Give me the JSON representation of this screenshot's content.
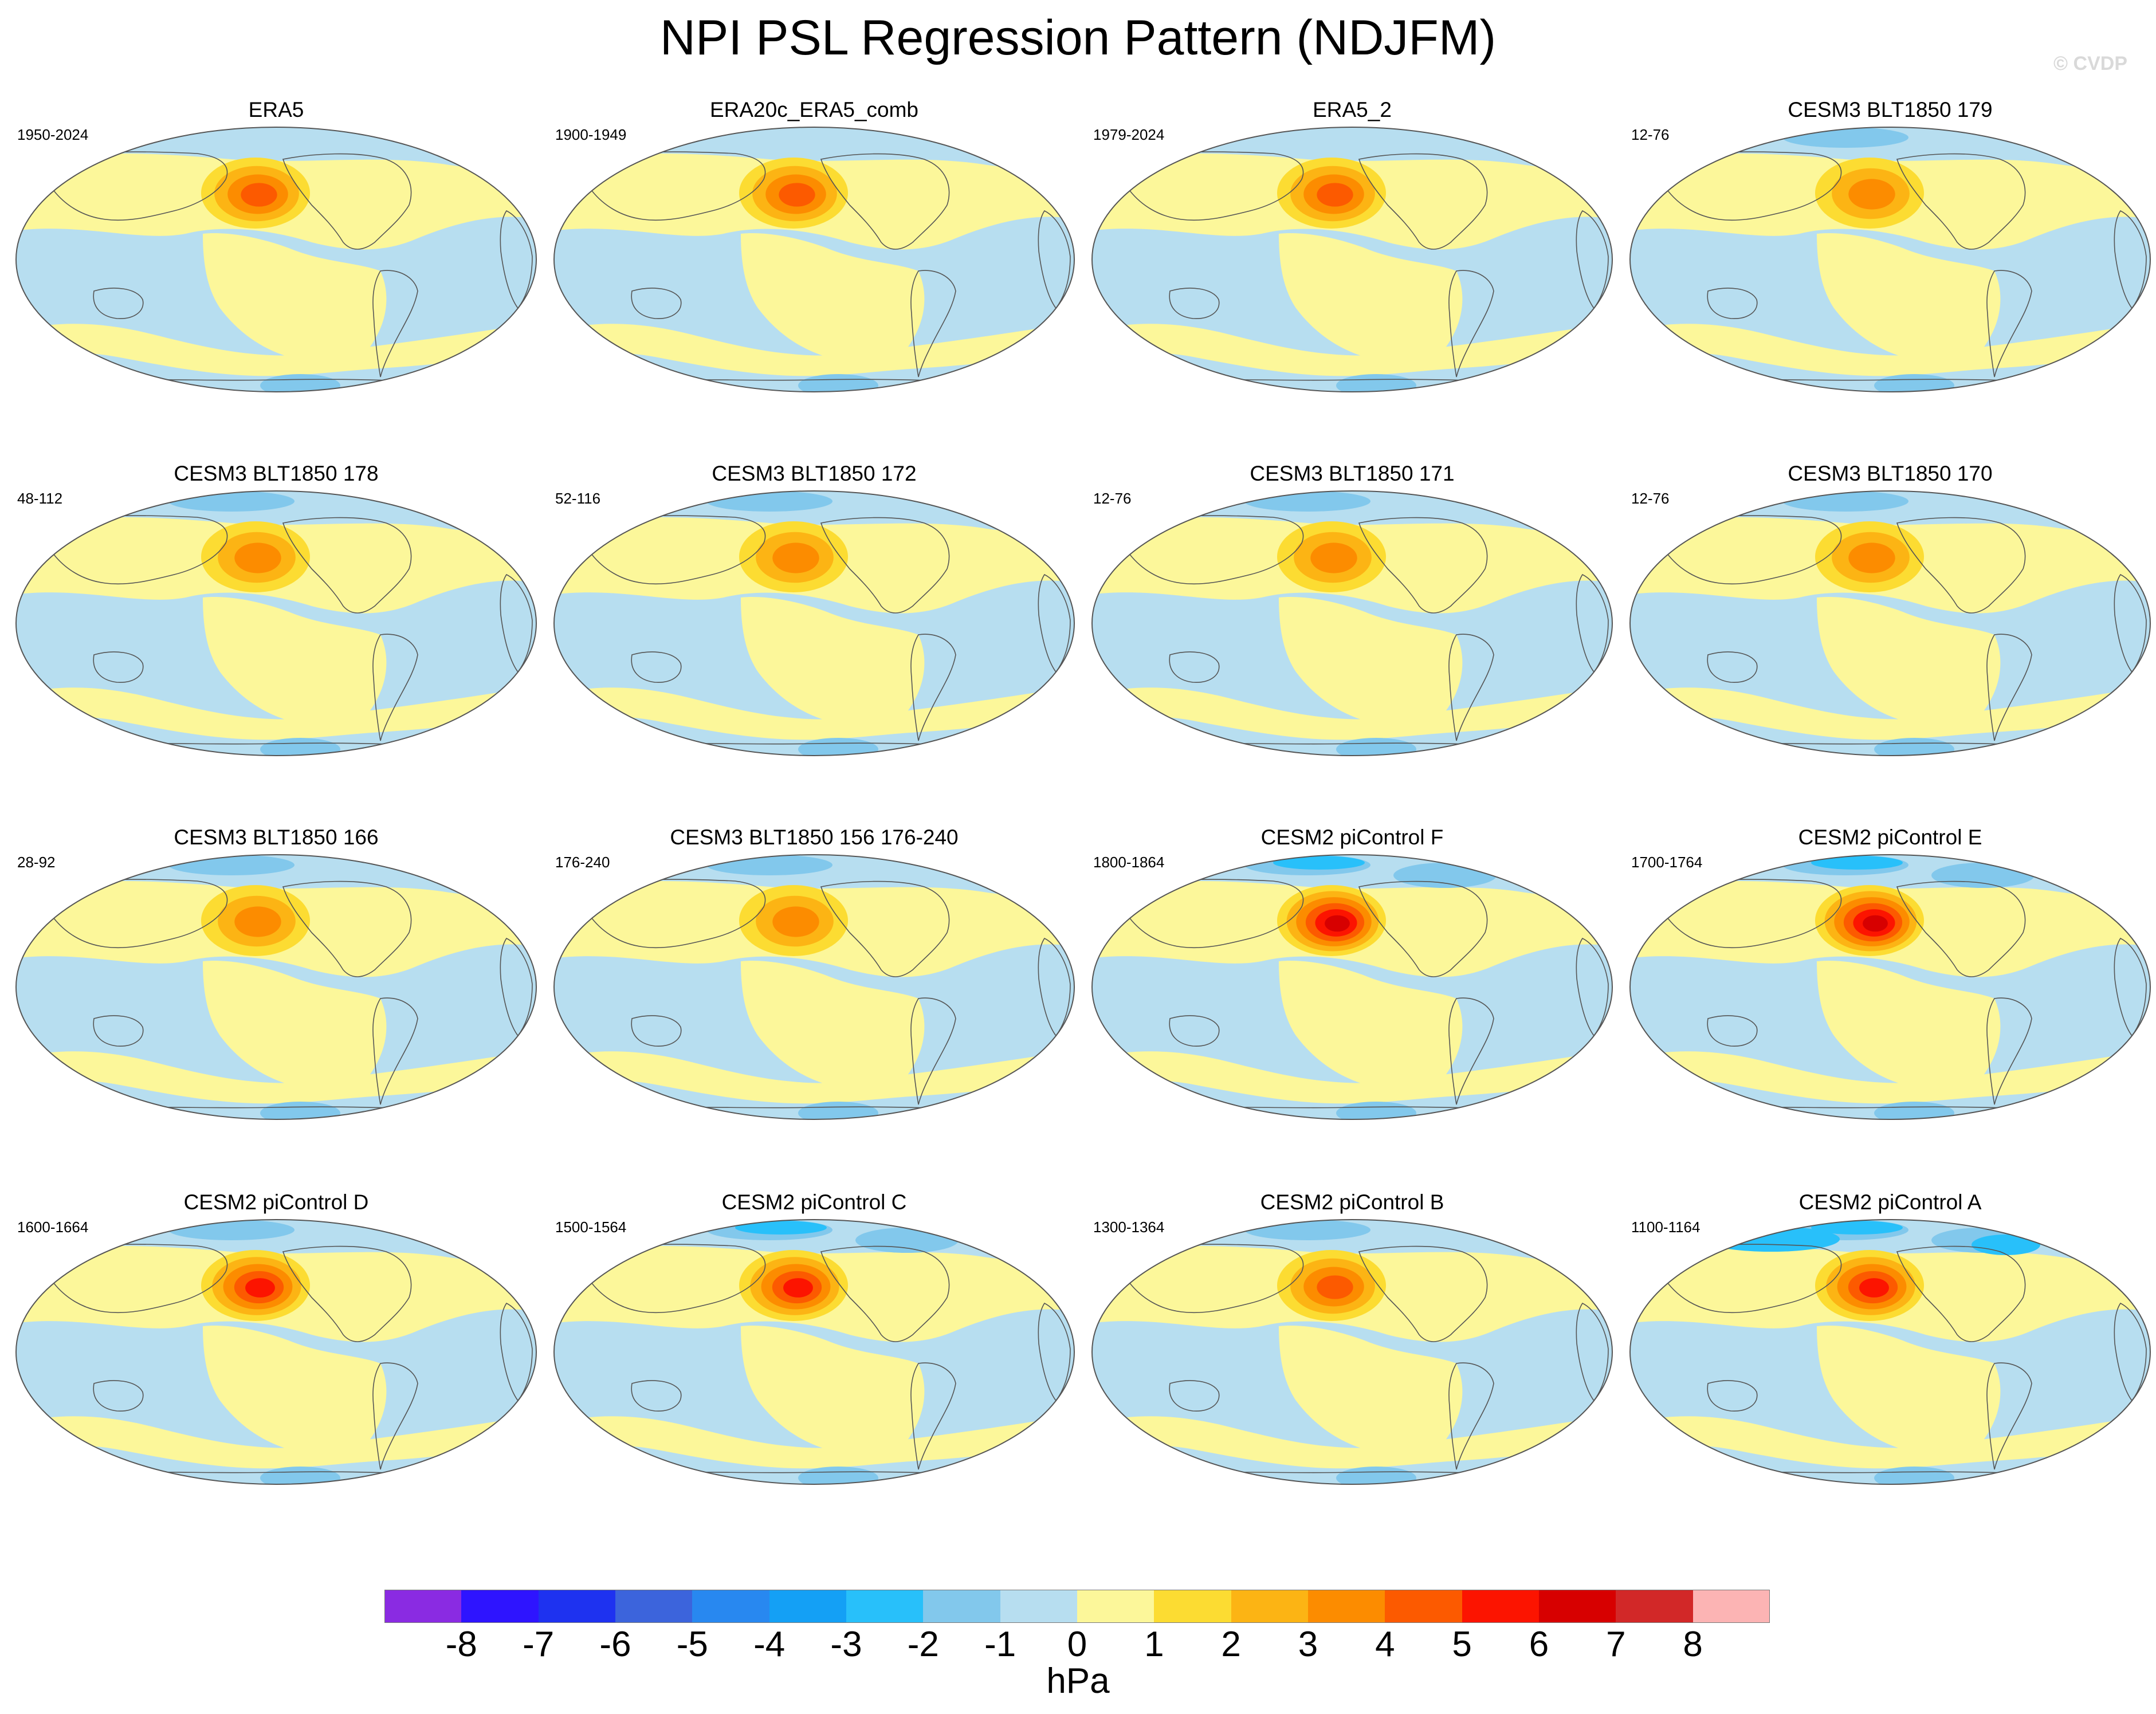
{
  "title": "NPI PSL Regression Pattern (NDJFM)",
  "credit": "© CVDP",
  "colors": {
    "ocean_pos": "#fcf79a",
    "ocean_neg": "#b7def0",
    "coast": "#555555"
  },
  "panels": [
    {
      "title": "ERA5",
      "range": "1950-2024",
      "peak": 3.5,
      "arctic_neg": 0
    },
    {
      "title": "ERA20c_ERA5_comb",
      "range": "1900-1949",
      "peak": 3.5,
      "arctic_neg": 0
    },
    {
      "title": "ERA5_2",
      "range": "1979-2024",
      "peak": 4.0,
      "arctic_neg": 0
    },
    {
      "title": "CESM3 BLT1850 179",
      "range": "12-76",
      "peak": 3.0,
      "arctic_neg": 1
    },
    {
      "title": "CESM3 BLT1850 178",
      "range": "48-112",
      "peak": 3.0,
      "arctic_neg": 1
    },
    {
      "title": "CESM3 BLT1850 172",
      "range": "52-116",
      "peak": 3.0,
      "arctic_neg": 1
    },
    {
      "title": "CESM3 BLT1850 171",
      "range": "12-76",
      "peak": 3.0,
      "arctic_neg": 1
    },
    {
      "title": "CESM3 BLT1850 170",
      "range": "12-76",
      "peak": 3.0,
      "arctic_neg": 1
    },
    {
      "title": "CESM3 BLT1850 166",
      "range": "28-92",
      "peak": 3.0,
      "arctic_neg": 1
    },
    {
      "title": "CESM3 BLT1850 156 176-240",
      "range": "176-240",
      "peak": 3.0,
      "arctic_neg": 1
    },
    {
      "title": "CESM2 piControl F",
      "range": "1800-1864",
      "peak": 6.0,
      "arctic_neg": 2
    },
    {
      "title": "CESM2 piControl E",
      "range": "1700-1764",
      "peak": 6.0,
      "arctic_neg": 2
    },
    {
      "title": "CESM2 piControl D",
      "range": "1600-1664",
      "peak": 5.0,
      "arctic_neg": 1
    },
    {
      "title": "CESM2 piControl C",
      "range": "1500-1564",
      "peak": 5.0,
      "arctic_neg": 2
    },
    {
      "title": "CESM2 piControl B",
      "range": "1300-1364",
      "peak": 4.0,
      "arctic_neg": 1
    },
    {
      "title": "CESM2 piControl A",
      "range": "1100-1164",
      "peak": 5.0,
      "arctic_neg": 3
    }
  ],
  "colorbar": {
    "units": "hPa",
    "levels": [
      "-8",
      "-7",
      "-6",
      "-5",
      "-4",
      "-3",
      "-2",
      "-1",
      "0",
      "1",
      "2",
      "3",
      "4",
      "5",
      "6",
      "7",
      "8"
    ],
    "colors": [
      "#8a2be2",
      "#2e14ff",
      "#1e32f0",
      "#3c64dc",
      "#2888f0",
      "#14a0f5",
      "#28c0fa",
      "#82c8ec",
      "#b7def0",
      "#fcf79a",
      "#fcdc32",
      "#fcb414",
      "#fc8c00",
      "#fc5a00",
      "#fc1400",
      "#d70000",
      "#d22828",
      "#fcb4b4"
    ]
  }
}
